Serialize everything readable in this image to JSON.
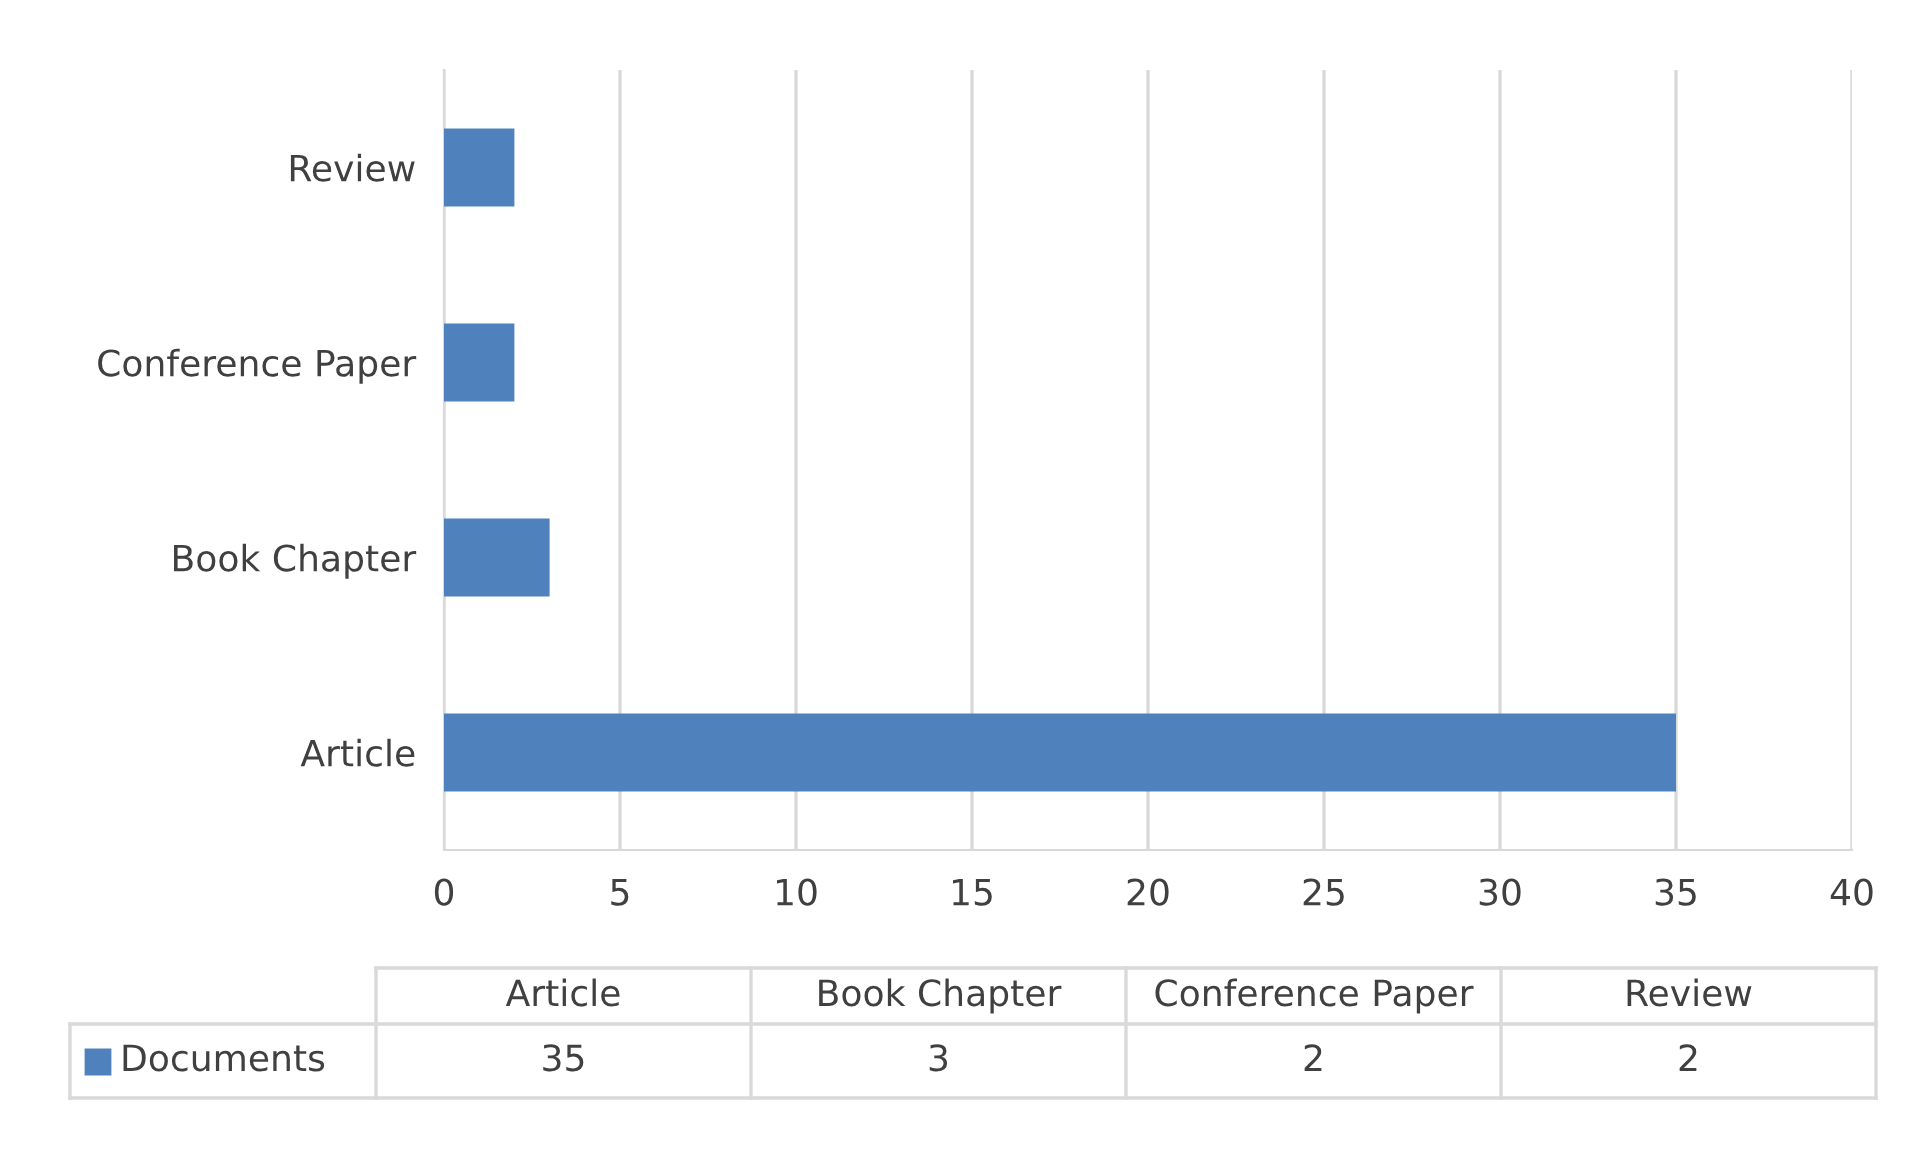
{
  "chart_data": [
    {
      "type": "bar",
      "orientation": "horizontal",
      "categories": [
        "Review",
        "Conference Paper",
        "Book Chapter",
        "Article"
      ],
      "series": [
        {
          "color": "#4f81bd",
          "values": [
            2,
            2,
            3,
            35
          ]
        }
      ],
      "xlim": [
        0,
        40
      ],
      "xticks": [
        0,
        5,
        10,
        15,
        20,
        25,
        30,
        35,
        40
      ],
      "grid": "x"
    },
    {
      "type": "other",
      "categories": [
        "Article",
        "Book Chapter",
        "Conference Paper",
        "Review"
      ],
      "series": [
        {
          "name": "Documents",
          "color": "#4f81bd",
          "values": [
            35,
            3,
            2,
            2
          ]
        }
      ],
      "data_labels": true
    }
  ]
}
